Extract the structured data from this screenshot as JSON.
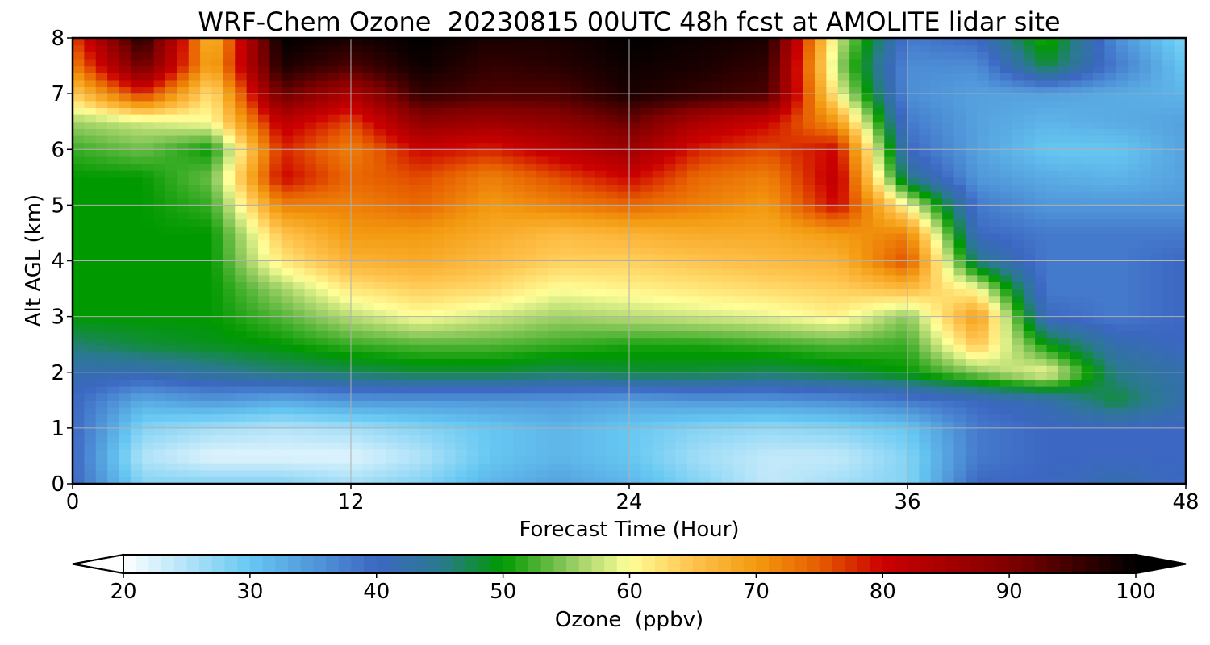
{
  "chart_data": {
    "type": "heatmap",
    "title": "WRF-Chem Ozone  20230815 00UTC 48h fcst at AMOLITE lidar site",
    "xlabel": "Forecast Time (Hour)",
    "ylabel": "Alt AGL (km)",
    "xlim": [
      0,
      48
    ],
    "ylim": [
      0,
      8
    ],
    "xticks": [
      0,
      12,
      24,
      36,
      48
    ],
    "yticks": [
      0,
      1,
      2,
      3,
      4,
      5,
      6,
      7,
      8
    ],
    "grid": true,
    "x": [
      0,
      3,
      6,
      9,
      12,
      15,
      18,
      21,
      24,
      27,
      30,
      33,
      36,
      39,
      42,
      45,
      48
    ],
    "y": [
      0,
      0.5,
      1,
      1.5,
      2,
      2.5,
      3,
      3.5,
      4,
      4.5,
      5,
      5.5,
      6,
      6.5,
      7,
      7.5,
      8
    ],
    "z": [
      [
        40,
        28,
        28,
        28,
        26,
        28,
        32,
        34,
        32,
        28,
        24,
        26,
        28,
        40,
        40,
        42,
        40
      ],
      [
        40,
        25,
        22,
        22,
        22,
        25,
        30,
        32,
        30,
        26,
        24,
        24,
        28,
        38,
        40,
        40,
        40
      ],
      [
        40,
        28,
        26,
        25,
        26,
        28,
        30,
        32,
        30,
        28,
        27,
        28,
        30,
        38,
        40,
        40,
        40
      ],
      [
        40,
        33,
        35,
        33,
        35,
        35,
        35,
        35,
        34,
        35,
        35,
        36,
        38,
        40,
        42,
        48,
        42
      ],
      [
        42,
        42,
        44,
        46,
        47,
        48,
        48,
        47,
        48,
        48,
        47,
        48,
        50,
        55,
        60,
        45,
        42
      ],
      [
        46,
        48,
        49,
        50,
        52,
        53,
        53,
        52,
        51,
        51,
        52,
        53,
        52,
        65,
        50,
        42,
        40
      ],
      [
        50,
        50,
        50,
        53,
        57,
        60,
        58,
        56,
        57,
        58,
        59,
        61,
        55,
        70,
        40,
        38,
        40
      ],
      [
        50,
        50,
        50,
        56,
        62,
        64,
        63,
        60,
        61,
        62,
        63,
        64,
        66,
        60,
        38,
        38,
        40
      ],
      [
        50,
        50,
        50,
        62,
        67,
        68,
        66,
        64,
        64,
        65,
        66,
        67,
        76,
        45,
        38,
        38,
        40
      ],
      [
        50,
        50,
        50,
        65,
        70,
        70,
        68,
        66,
        67,
        68,
        68,
        70,
        72,
        40,
        38,
        38,
        38
      ],
      [
        50,
        50,
        52,
        72,
        72,
        74,
        70,
        72,
        74,
        72,
        70,
        80,
        60,
        38,
        35,
        35,
        35
      ],
      [
        50,
        50,
        54,
        80,
        74,
        76,
        72,
        76,
        80,
        74,
        72,
        82,
        45,
        35,
        33,
        32,
        34
      ],
      [
        52,
        54,
        50,
        78,
        72,
        80,
        78,
        82,
        86,
        78,
        76,
        80,
        40,
        34,
        30,
        30,
        34
      ],
      [
        56,
        58,
        60,
        82,
        76,
        88,
        86,
        88,
        92,
        84,
        80,
        70,
        38,
        34,
        32,
        33,
        34
      ],
      [
        64,
        78,
        62,
        92,
        84,
        96,
        94,
        94,
        98,
        96,
        94,
        60,
        36,
        34,
        34,
        33,
        32
      ],
      [
        72,
        92,
        68,
        98,
        94,
        99,
        96,
        97,
        99,
        98,
        96,
        56,
        36,
        36,
        48,
        38,
        30
      ],
      [
        76,
        98,
        66,
        100,
        98,
        100,
        98,
        98,
        100,
        99,
        98,
        58,
        38,
        40,
        52,
        36,
        28
      ]
    ],
    "colorbar": {
      "label": "Ozone  (ppbv)",
      "min": 20,
      "max": 100,
      "ticks": [
        20,
        30,
        40,
        50,
        60,
        70,
        80,
        90,
        100
      ],
      "extend": "both",
      "color_stops": [
        {
          "value": 20,
          "color": "#ffffff"
        },
        {
          "value": 30,
          "color": "#66c8f2"
        },
        {
          "value": 40,
          "color": "#3c67c2"
        },
        {
          "value": 45,
          "color": "#2a7a8f"
        },
        {
          "value": 50,
          "color": "#009900"
        },
        {
          "value": 55,
          "color": "#88c75a"
        },
        {
          "value": 60,
          "color": "#ffff99"
        },
        {
          "value": 65,
          "color": "#ffc34d"
        },
        {
          "value": 70,
          "color": "#f39a10"
        },
        {
          "value": 75,
          "color": "#e65c00"
        },
        {
          "value": 80,
          "color": "#cc0000"
        },
        {
          "value": 90,
          "color": "#800000"
        },
        {
          "value": 100,
          "color": "#000000"
        }
      ]
    }
  }
}
